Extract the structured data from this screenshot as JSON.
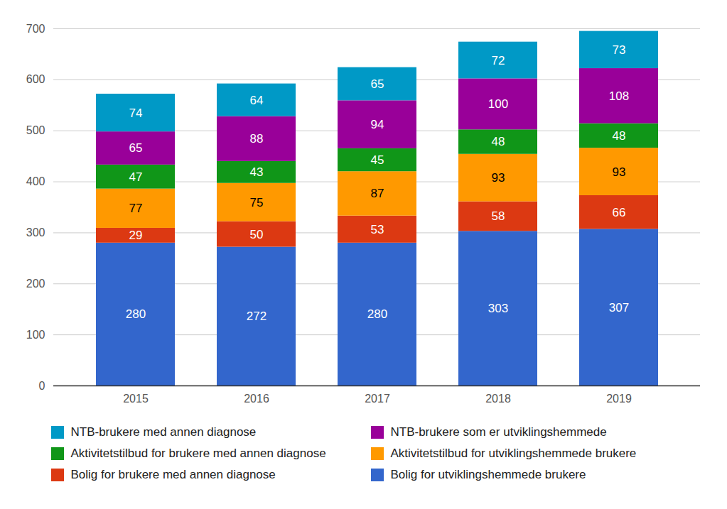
{
  "chart_data": {
    "type": "bar",
    "stacked": true,
    "data_labels": true,
    "grid": true,
    "legend": "bottom",
    "categories": [
      "2015",
      "2016",
      "2017",
      "2018",
      "2019"
    ],
    "ylim": [
      0,
      700
    ],
    "yticks": [
      0,
      100,
      200,
      300,
      400,
      500,
      600,
      700
    ],
    "series": [
      {
        "name": "Bolig for utviklingshemmede brukere",
        "color": "#3366cc",
        "values": [
          280,
          272,
          280,
          303,
          307
        ]
      },
      {
        "name": "Bolig for brukere med annen diagnose",
        "color": "#dc3912",
        "values": [
          29,
          50,
          53,
          58,
          66
        ]
      },
      {
        "name": "Aktivitetstilbud for utviklingshemmede brukere",
        "color": "#ff9900",
        "values": [
          77,
          75,
          87,
          93,
          93
        ]
      },
      {
        "name": "Aktivitetstilbud for brukere med annen diagnose",
        "color": "#109618",
        "values": [
          47,
          43,
          45,
          48,
          48
        ]
      },
      {
        "name": "NTB-brukere som er utviklingshemmede",
        "color": "#990099",
        "values": [
          65,
          88,
          94,
          100,
          108
        ]
      },
      {
        "name": "NTB-brukere med annen diagnose",
        "color": "#0099c6",
        "values": [
          74,
          64,
          65,
          72,
          73
        ]
      }
    ]
  }
}
